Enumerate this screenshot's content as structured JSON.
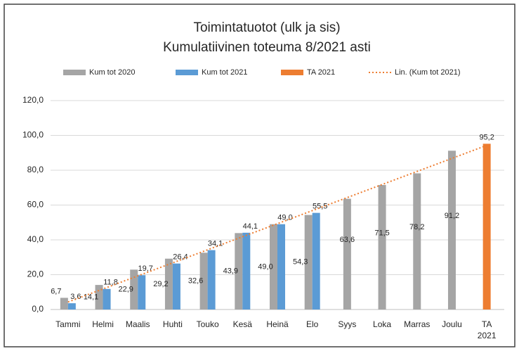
{
  "chart_data": {
    "type": "bar",
    "title": "Toimintatuotot (ulk ja sis)",
    "subtitle": "Kumulatiivinen toteuma 8/2021 asti",
    "categories": [
      "Tammi",
      "Helmi",
      "Maalis",
      "Huhti",
      "Touko",
      "Kesä",
      "Heinä",
      "Elo",
      "Syys",
      "Loka",
      "Marras",
      "Joulu",
      "TA 2021"
    ],
    "series": [
      {
        "name": "Kum tot 2020",
        "color": "#a5a5a5",
        "values": [
          6.7,
          14.1,
          22.9,
          29.2,
          32.6,
          43.9,
          49.0,
          54.3,
          63.6,
          71.5,
          78.2,
          91.2,
          null
        ],
        "value_labels": [
          "6,7",
          "14,1",
          "22,9",
          "29,2",
          "32,6",
          "43,9",
          "49,0",
          "54,3",
          "63,6",
          "71,5",
          "78,2",
          "91,2",
          null
        ]
      },
      {
        "name": "Kum tot 2021",
        "color": "#5b9bd5",
        "values": [
          3.6,
          11.8,
          19.7,
          26.4,
          34.1,
          44.1,
          49.0,
          55.5,
          null,
          null,
          null,
          null,
          null
        ],
        "value_labels": [
          "3,6",
          "11,8",
          "19,7",
          "26,4",
          "34,1",
          "44,1",
          "49,0",
          "55,5",
          null,
          null,
          null,
          null,
          null
        ]
      },
      {
        "name": "TA 2021",
        "color": "#ed7d31",
        "values": [
          null,
          null,
          null,
          null,
          null,
          null,
          null,
          null,
          null,
          null,
          null,
          null,
          95.2
        ],
        "value_labels": [
          null,
          null,
          null,
          null,
          null,
          null,
          null,
          null,
          null,
          null,
          null,
          null,
          "95,2"
        ]
      },
      {
        "name": "Lin. (Kum tot 2021)",
        "color": "#ed7d31",
        "type": "line",
        "style": "dotted",
        "values": [
          4.3,
          11.8,
          19.3,
          26.8,
          34.3,
          41.8,
          49.3,
          56.8,
          64.3,
          71.8,
          79.3,
          86.8,
          94.3
        ]
      }
    ],
    "ylim": [
      0,
      120
    ],
    "yticks": [
      {
        "value": 0,
        "label": "0,0"
      },
      {
        "value": 20,
        "label": "20,0"
      },
      {
        "value": 40,
        "label": "40,0"
      },
      {
        "value": 60,
        "label": "60,0"
      },
      {
        "value": 80,
        "label": "80,0"
      },
      {
        "value": 100,
        "label": "100,0"
      },
      {
        "value": 120,
        "label": "120,0"
      }
    ],
    "grid": true,
    "legend": "top"
  }
}
